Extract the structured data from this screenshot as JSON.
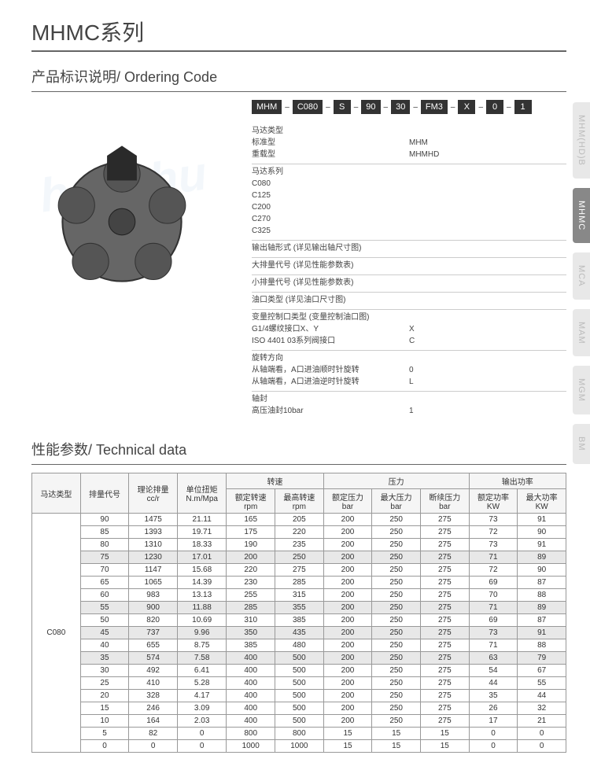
{
  "titles": {
    "main": "MHMC系列",
    "ordering_zh": "产品标识说明",
    "ordering_en": "Ordering Code",
    "tech_zh": "性能参数",
    "tech_en": "Technical data"
  },
  "code_boxes": [
    "MHM",
    "C080",
    "S",
    "90",
    "30",
    "FM3",
    "X",
    "0",
    "1"
  ],
  "code_desc": [
    {
      "title": "马达类型",
      "lines": [
        [
          "标准型",
          "MHM"
        ],
        [
          "重载型",
          "MHMHD"
        ]
      ]
    },
    {
      "title": "马达系列",
      "lines": [
        [
          "C080",
          ""
        ],
        [
          "C125",
          ""
        ],
        [
          "C200",
          ""
        ],
        [
          "C270",
          ""
        ],
        [
          "C325",
          ""
        ]
      ]
    },
    {
      "title": "输出轴形式 (详见输出轴尺寸图)",
      "lines": []
    },
    {
      "title": "大排量代号 (详见性能参数表)",
      "lines": []
    },
    {
      "title": "小排量代号 (详见性能参数表)",
      "lines": []
    },
    {
      "title": "油口类型 (详见油口尺寸图)",
      "lines": []
    },
    {
      "title": "变量控制口类型 (变量控制油口图)",
      "lines": [
        [
          "G1/4螺纹接口X、Y",
          "X"
        ],
        [
          "ISO 4401 03系列阀接口",
          "C"
        ]
      ]
    },
    {
      "title": "旋转方向",
      "lines": [
        [
          "从轴端看，A口进油顺时针旋转",
          "0"
        ],
        [
          "从轴端看，A口进油逆时针旋转",
          "L"
        ]
      ]
    },
    {
      "title": "轴封",
      "lines": [
        [
          "高压油封10bar",
          "1"
        ]
      ]
    }
  ],
  "side_tabs": [
    {
      "label": "MHM(HD)B",
      "active": false
    },
    {
      "label": "MHMC",
      "active": true
    },
    {
      "label": "MCA",
      "active": false
    },
    {
      "label": "MAM",
      "active": false
    },
    {
      "label": "MGM",
      "active": false
    },
    {
      "label": "BM",
      "active": false
    }
  ],
  "table": {
    "group_headers": [
      {
        "label": "马达类型",
        "colspan": 1,
        "rowspan": 2
      },
      {
        "label": "排量代号",
        "colspan": 1,
        "rowspan": 2
      },
      {
        "label": "理论排量\ncc/r",
        "colspan": 1,
        "rowspan": 2
      },
      {
        "label": "单位扭矩\nN.m/Mpa",
        "colspan": 1,
        "rowspan": 2
      },
      {
        "label": "转速",
        "colspan": 2,
        "rowspan": 1
      },
      {
        "label": "压力",
        "colspan": 3,
        "rowspan": 1
      },
      {
        "label": "输出功率",
        "colspan": 2,
        "rowspan": 1
      }
    ],
    "sub_headers": [
      "额定转速\nrpm",
      "最高转速\nrpm",
      "额定压力\nbar",
      "最大压力\nbar",
      "断续压力\nbar",
      "额定功率\nKW",
      "最大功率\nKW"
    ],
    "motor_type": "C080",
    "rows": [
      [
        "90",
        "1475",
        "21.11",
        "165",
        "205",
        "200",
        "250",
        "275",
        "73",
        "91"
      ],
      [
        "85",
        "1393",
        "19.71",
        "175",
        "220",
        "200",
        "250",
        "275",
        "72",
        "90"
      ],
      [
        "80",
        "1310",
        "18.33",
        "190",
        "235",
        "200",
        "250",
        "275",
        "73",
        "91"
      ],
      [
        "75",
        "1230",
        "17.01",
        "200",
        "250",
        "200",
        "250",
        "275",
        "71",
        "89"
      ],
      [
        "70",
        "1147",
        "15.68",
        "220",
        "275",
        "200",
        "250",
        "275",
        "72",
        "90"
      ],
      [
        "65",
        "1065",
        "14.39",
        "230",
        "285",
        "200",
        "250",
        "275",
        "69",
        "87"
      ],
      [
        "60",
        "983",
        "13.13",
        "255",
        "315",
        "200",
        "250",
        "275",
        "70",
        "88"
      ],
      [
        "55",
        "900",
        "11.88",
        "285",
        "355",
        "200",
        "250",
        "275",
        "71",
        "89"
      ],
      [
        "50",
        "820",
        "10.69",
        "310",
        "385",
        "200",
        "250",
        "275",
        "69",
        "87"
      ],
      [
        "45",
        "737",
        "9.96",
        "350",
        "435",
        "200",
        "250",
        "275",
        "73",
        "91"
      ],
      [
        "40",
        "655",
        "8.75",
        "385",
        "480",
        "200",
        "250",
        "275",
        "71",
        "88"
      ],
      [
        "35",
        "574",
        "7.58",
        "400",
        "500",
        "200",
        "250",
        "275",
        "63",
        "79"
      ],
      [
        "30",
        "492",
        "6.41",
        "400",
        "500",
        "200",
        "250",
        "275",
        "54",
        "67"
      ],
      [
        "25",
        "410",
        "5.28",
        "400",
        "500",
        "200",
        "250",
        "275",
        "44",
        "55"
      ],
      [
        "20",
        "328",
        "4.17",
        "400",
        "500",
        "200",
        "250",
        "275",
        "35",
        "44"
      ],
      [
        "15",
        "246",
        "3.09",
        "400",
        "500",
        "200",
        "250",
        "275",
        "26",
        "32"
      ],
      [
        "10",
        "164",
        "2.03",
        "400",
        "500",
        "200",
        "250",
        "275",
        "17",
        "21"
      ],
      [
        "5",
        "82",
        "0",
        "800",
        "800",
        "15",
        "15",
        "15",
        "0",
        "0"
      ],
      [
        "0",
        "0",
        "0",
        "1000",
        "1000",
        "15",
        "15",
        "15",
        "0",
        "0"
      ]
    ],
    "alt_rows": [
      3,
      7,
      9,
      11
    ]
  },
  "colors": {
    "text": "#333",
    "border": "#999",
    "header_bg": "#f5f5f5",
    "tab_bg": "#e8e8e8",
    "tab_fg": "#bbb",
    "tab_active_bg": "#888",
    "tab_active_fg": "#fff",
    "codebox_bg": "#333",
    "codebox_fg": "#fff",
    "hr": "#666",
    "alt_row": "#e8e8e8"
  }
}
